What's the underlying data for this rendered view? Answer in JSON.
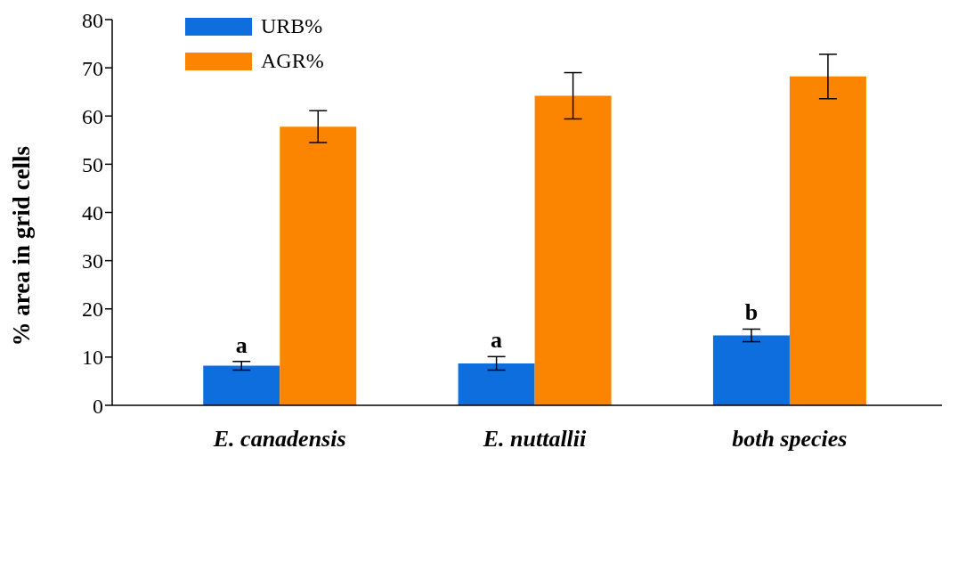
{
  "chart_data": {
    "type": "bar",
    "ylabel": "% area in grid cells",
    "categories": [
      "E. canadensis",
      "E. nuttallii",
      "both species"
    ],
    "series": [
      {
        "name": "URB%",
        "color": "#0e6ede",
        "values": [
          8.2,
          8.7,
          14.5
        ],
        "errors": [
          0.9,
          1.4,
          1.3
        ]
      },
      {
        "name": "AGR%",
        "color": "#fb8500",
        "values": [
          57.8,
          64.2,
          68.2
        ],
        "errors": [
          3.3,
          4.8,
          4.6
        ]
      }
    ],
    "ylim": [
      0,
      80
    ],
    "yticks": [
      0,
      10,
      20,
      30,
      40,
      50,
      60,
      70,
      80
    ],
    "grid": false,
    "legend": "top left",
    "annotations": [
      {
        "text": "a",
        "x": "E. canadensis",
        "y": 9.1
      },
      {
        "text": "a",
        "x": "E. nuttallii",
        "y": 10.1
      },
      {
        "text": "b",
        "x": "both species",
        "y": 15.8
      }
    ]
  }
}
